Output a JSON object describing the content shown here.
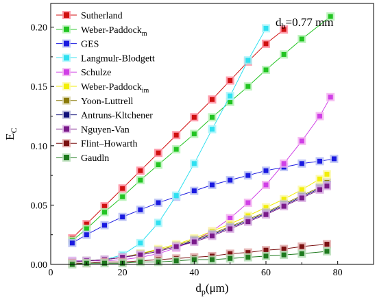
{
  "chart_data": {
    "type": "line",
    "annotation": {
      "main": "d",
      "sub": "b",
      "rest": "=0.77 mm"
    },
    "xlabel": {
      "main": "d",
      "sub": "p",
      "rest": "(μm)"
    },
    "ylabel": {
      "main": "E",
      "sub": "C"
    },
    "xlim": [
      0,
      90
    ],
    "ylim": [
      0,
      0.22
    ],
    "xticks": [
      {
        "v": 0,
        "label": "0"
      },
      {
        "v": 20,
        "label": "20"
      },
      {
        "v": 40,
        "label": "40"
      },
      {
        "v": 60,
        "label": "60"
      },
      {
        "v": 80,
        "label": "80"
      }
    ],
    "yticks": [
      {
        "v": 0,
        "label": "0.00"
      },
      {
        "v": 0.05,
        "label": "0.05"
      },
      {
        "v": 0.1,
        "label": "0.10"
      },
      {
        "v": 0.15,
        "label": "0.15"
      },
      {
        "v": 0.2,
        "label": "0.20"
      }
    ],
    "grid": false,
    "legend_position": "top-left",
    "series": [
      {
        "name": "Sutherland",
        "sub": "",
        "color": "#d01010",
        "glow": "#ff8c9e",
        "x": [
          6,
          10,
          15,
          20,
          25,
          30,
          35,
          40,
          45,
          50,
          55,
          60,
          65
        ],
        "y": [
          0.022,
          0.034,
          0.049,
          0.064,
          0.079,
          0.094,
          0.109,
          0.124,
          0.139,
          0.155,
          0.171,
          0.186,
          0.198
        ]
      },
      {
        "name": "Weber-Paddock",
        "sub": "m",
        "color": "#22c422",
        "glow": "#b5f2b5",
        "x": [
          6,
          10,
          15,
          20,
          25,
          30,
          35,
          40,
          45,
          50,
          55,
          60,
          65,
          70,
          78
        ],
        "y": [
          0.02,
          0.03,
          0.044,
          0.057,
          0.071,
          0.084,
          0.097,
          0.11,
          0.124,
          0.137,
          0.15,
          0.164,
          0.177,
          0.19,
          0.209
        ]
      },
      {
        "name": "GES",
        "sub": "",
        "color": "#1a1ae0",
        "glow": "#b9c0f5",
        "x": [
          6,
          10,
          15,
          20,
          25,
          30,
          35,
          40,
          45,
          50,
          55,
          60,
          65,
          70,
          75,
          79
        ],
        "y": [
          0.018,
          0.025,
          0.033,
          0.04,
          0.046,
          0.052,
          0.057,
          0.062,
          0.067,
          0.071,
          0.075,
          0.079,
          0.082,
          0.085,
          0.087,
          0.089
        ]
      },
      {
        "name": "Langmulr-Blodgett",
        "sub": "",
        "color": "#2ee0f0",
        "glow": "#a8f4fa",
        "x": [
          6,
          10,
          15,
          20,
          25,
          30,
          35,
          40,
          45,
          50,
          55,
          60
        ],
        "y": [
          0.003,
          0.003,
          0.004,
          0.008,
          0.018,
          0.035,
          0.058,
          0.085,
          0.114,
          0.142,
          0.172,
          0.199
        ]
      },
      {
        "name": "Schulze",
        "sub": "",
        "color": "#d040e6",
        "glow": "#f3b1f0",
        "x": [
          6,
          10,
          15,
          20,
          25,
          30,
          35,
          40,
          45,
          50,
          55,
          60,
          65,
          70,
          75,
          78
        ],
        "y": [
          0.003,
          0.003,
          0.003,
          0.004,
          0.006,
          0.009,
          0.014,
          0.02,
          0.028,
          0.039,
          0.052,
          0.067,
          0.085,
          0.104,
          0.125,
          0.141
        ]
      },
      {
        "name": "Weber-Paddock",
        "sub": "im",
        "color": "#f2ee08",
        "glow": "#fcf9a8",
        "x": [
          6,
          10,
          15,
          20,
          25,
          30,
          35,
          40,
          45,
          50,
          55,
          60,
          65,
          70,
          75,
          77
        ],
        "y": [
          0.002,
          0.003,
          0.004,
          0.006,
          0.009,
          0.013,
          0.017,
          0.022,
          0.028,
          0.034,
          0.041,
          0.048,
          0.055,
          0.063,
          0.072,
          0.076
        ]
      },
      {
        "name": "Yoon-Luttrell",
        "sub": "",
        "color": "#8a7a08",
        "glow": "#d9d5a8",
        "x": [
          6,
          10,
          15,
          20,
          25,
          30,
          35,
          40,
          45,
          50,
          55,
          60,
          65,
          70,
          75,
          77
        ],
        "y": [
          0.002,
          0.003,
          0.004,
          0.006,
          0.009,
          0.012,
          0.016,
          0.021,
          0.026,
          0.032,
          0.038,
          0.044,
          0.051,
          0.058,
          0.065,
          0.069
        ]
      },
      {
        "name": "Antruns-Kltchener",
        "sub": "",
        "color": "#12127a",
        "glow": "#b0b0d6",
        "x": [
          6,
          10,
          15,
          20,
          25,
          30,
          35,
          40,
          45,
          50,
          55,
          60,
          65,
          70,
          75,
          77
        ],
        "y": [
          0.002,
          0.003,
          0.004,
          0.006,
          0.008,
          0.011,
          0.015,
          0.02,
          0.025,
          0.031,
          0.037,
          0.043,
          0.05,
          0.057,
          0.064,
          0.067
        ]
      },
      {
        "name": "Nguyen-Van",
        "sub": "",
        "color": "#7a1a8a",
        "glow": "#dcb0e3",
        "x": [
          6,
          10,
          15,
          20,
          25,
          30,
          35,
          40,
          45,
          50,
          55,
          60,
          65,
          70,
          75,
          77
        ],
        "y": [
          0.002,
          0.003,
          0.004,
          0.006,
          0.008,
          0.011,
          0.015,
          0.019,
          0.024,
          0.03,
          0.036,
          0.042,
          0.049,
          0.056,
          0.063,
          0.066
        ]
      },
      {
        "name": "Flint–Howarth",
        "sub": "",
        "color": "#7a1010",
        "glow": "#e0a8a8",
        "x": [
          6,
          10,
          15,
          20,
          25,
          30,
          35,
          40,
          45,
          50,
          55,
          60,
          65,
          70,
          77
        ],
        "y": [
          0.001,
          0.001,
          0.002,
          0.002,
          0.003,
          0.004,
          0.005,
          0.006,
          0.007,
          0.009,
          0.01,
          0.012,
          0.013,
          0.015,
          0.017
        ]
      },
      {
        "name": "Gaudln",
        "sub": "",
        "color": "#1e7a1e",
        "glow": "#b6ddb6",
        "x": [
          6,
          10,
          15,
          20,
          25,
          30,
          35,
          40,
          45,
          50,
          55,
          60,
          65,
          70,
          77
        ],
        "y": [
          0.0,
          0.001,
          0.001,
          0.001,
          0.002,
          0.002,
          0.003,
          0.004,
          0.004,
          0.005,
          0.006,
          0.007,
          0.008,
          0.009,
          0.011
        ]
      }
    ]
  }
}
